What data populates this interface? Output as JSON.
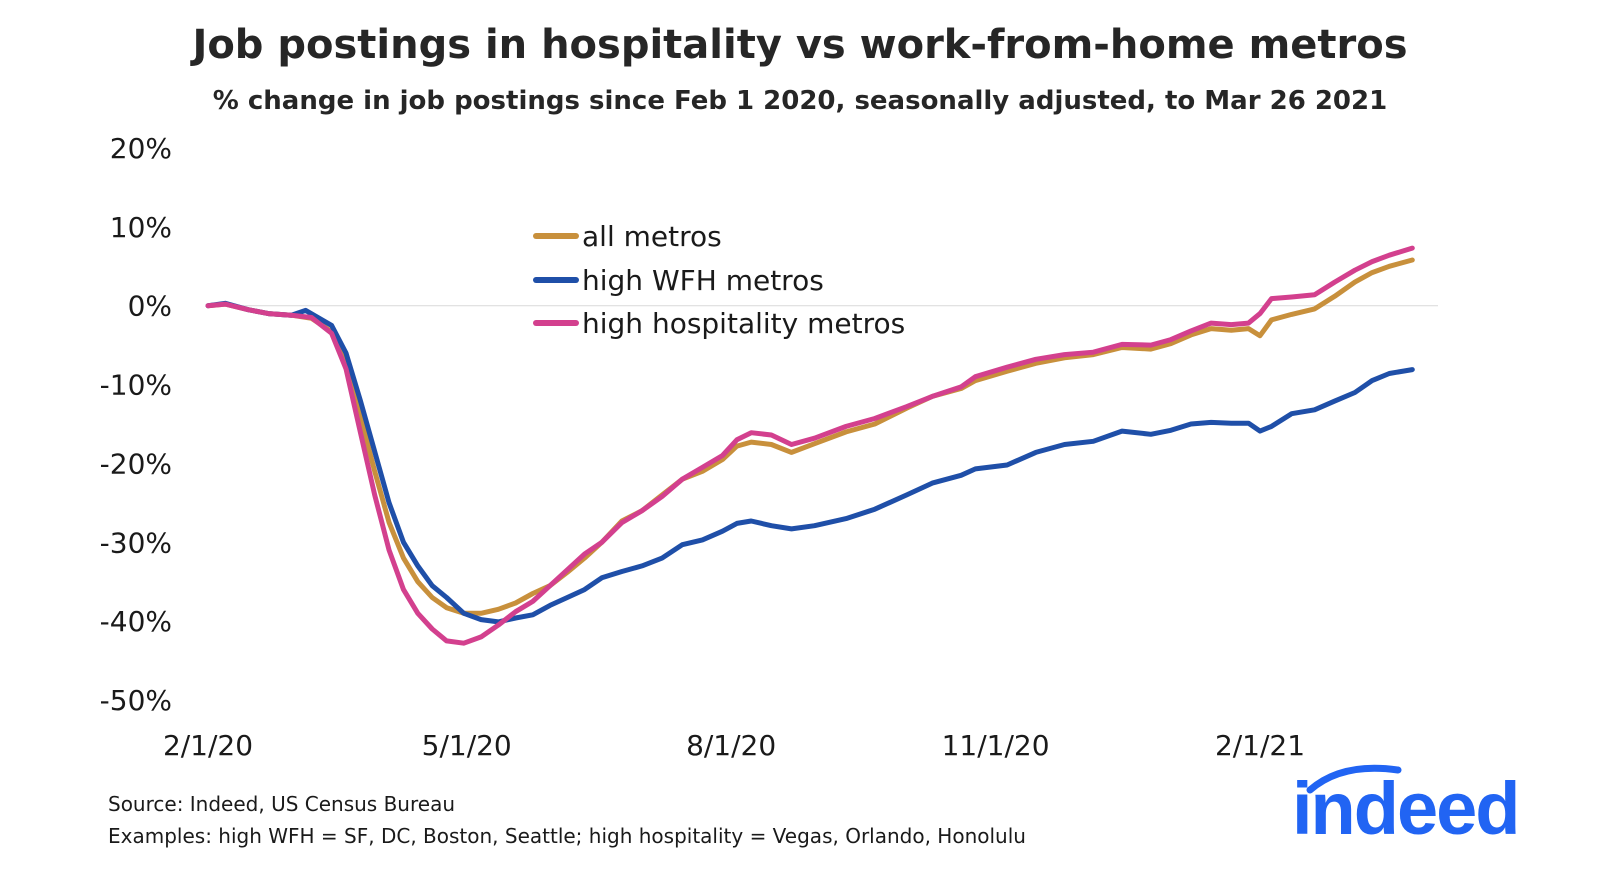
{
  "header": {
    "title": "Job postings in hospitality vs work-from-home metros",
    "subtitle": "% change in job postings since Feb 1 2020, seasonally adjusted, to Mar 26 2021"
  },
  "footer": {
    "source": "Source: Indeed, US Census Bureau",
    "examples": "Examples: high WFH = SF, DC, Boston, Seattle; high hospitality = Vegas, Orlando, Honolulu"
  },
  "logo": {
    "text": "indeed",
    "color": "#2164f3"
  },
  "chart_data": {
    "type": "line",
    "title": "Job postings in hospitality vs work-from-home metros",
    "subtitle": "% change in job postings since Feb 1 2020, seasonally adjusted, to Mar 26 2021",
    "xlabel": "",
    "ylabel": "",
    "x_unit": "date",
    "x_start": "2020-02-01",
    "x_end": "2021-03-26",
    "x_ticks": [
      {
        "label": "2/1/20",
        "date": "2020-02-01"
      },
      {
        "label": "5/1/20",
        "date": "2020-05-01"
      },
      {
        "label": "8/1/20",
        "date": "2020-08-01"
      },
      {
        "label": "11/1/20",
        "date": "2020-11-01"
      },
      {
        "label": "2/1/21",
        "date": "2021-02-01"
      }
    ],
    "y_ticks": [
      {
        "label": "20%",
        "value": 20
      },
      {
        "label": "10%",
        "value": 10
      },
      {
        "label": "0%",
        "value": 0
      },
      {
        "label": "-10%",
        "value": -10
      },
      {
        "label": "-20%",
        "value": -20
      },
      {
        "label": "-30%",
        "value": -30
      },
      {
        "label": "-40%",
        "value": -40
      },
      {
        "label": "-50%",
        "value": -50
      }
    ],
    "ylim": [
      -50,
      20
    ],
    "grid": "zero-line only",
    "legend_position": "center-top",
    "series": [
      {
        "name": "all metros",
        "color": "#c8903c",
        "points": [
          [
            "2020-02-01",
            0
          ],
          [
            "2020-02-07",
            0.2
          ],
          [
            "2020-02-15",
            -0.5
          ],
          [
            "2020-02-22",
            -1
          ],
          [
            "2020-03-01",
            -1.2
          ],
          [
            "2020-03-08",
            -1.6
          ],
          [
            "2020-03-15",
            -3.3
          ],
          [
            "2020-03-20",
            -7
          ],
          [
            "2020-03-25",
            -14
          ],
          [
            "2020-03-30",
            -21
          ],
          [
            "2020-04-04",
            -27.5
          ],
          [
            "2020-04-09",
            -32
          ],
          [
            "2020-04-14",
            -35
          ],
          [
            "2020-04-19",
            -37
          ],
          [
            "2020-04-24",
            -38.3
          ],
          [
            "2020-04-30",
            -39
          ],
          [
            "2020-05-06",
            -39
          ],
          [
            "2020-05-12",
            -38.5
          ],
          [
            "2020-05-18",
            -37.7
          ],
          [
            "2020-05-24",
            -36.5
          ],
          [
            "2020-05-30",
            -35.5
          ],
          [
            "2020-06-05",
            -33.8
          ],
          [
            "2020-06-11",
            -32
          ],
          [
            "2020-06-17",
            -30
          ],
          [
            "2020-06-24",
            -27.3
          ],
          [
            "2020-07-01",
            -26
          ],
          [
            "2020-07-08",
            -24
          ],
          [
            "2020-07-15",
            -22
          ],
          [
            "2020-07-22",
            -21
          ],
          [
            "2020-07-29",
            -19.5
          ],
          [
            "2020-08-03",
            -17.8
          ],
          [
            "2020-08-08",
            -17.3
          ],
          [
            "2020-08-15",
            -17.6
          ],
          [
            "2020-08-22",
            -18.6
          ],
          [
            "2020-08-30",
            -17.5
          ],
          [
            "2020-09-10",
            -16
          ],
          [
            "2020-09-20",
            -15
          ],
          [
            "2020-10-01",
            -13
          ],
          [
            "2020-10-10",
            -11.5
          ],
          [
            "2020-10-20",
            -10.5
          ],
          [
            "2020-10-25",
            -9.5
          ],
          [
            "2020-11-05",
            -8.3
          ],
          [
            "2020-11-15",
            -7.3
          ],
          [
            "2020-11-25",
            -6.6
          ],
          [
            "2020-12-05",
            -6.2
          ],
          [
            "2020-12-15",
            -5.3
          ],
          [
            "2020-12-25",
            -5.5
          ],
          [
            "2021-01-01",
            -4.8
          ],
          [
            "2021-01-08",
            -3.7
          ],
          [
            "2021-01-15",
            -2.9
          ],
          [
            "2021-01-22",
            -3.1
          ],
          [
            "2021-01-28",
            -2.9
          ],
          [
            "2021-02-01",
            -3.8
          ],
          [
            "2021-02-05",
            -1.8
          ],
          [
            "2021-02-12",
            -1.1
          ],
          [
            "2021-02-20",
            -0.4
          ],
          [
            "2021-02-27",
            1.2
          ],
          [
            "2021-03-06",
            3
          ],
          [
            "2021-03-12",
            4.2
          ],
          [
            "2021-03-18",
            5
          ],
          [
            "2021-03-26",
            5.8
          ]
        ]
      },
      {
        "name": "high WFH metros",
        "color": "#1f4fa8",
        "points": [
          [
            "2020-02-01",
            0
          ],
          [
            "2020-02-07",
            0.3
          ],
          [
            "2020-02-15",
            -0.5
          ],
          [
            "2020-02-22",
            -1
          ],
          [
            "2020-03-01",
            -1.2
          ],
          [
            "2020-03-06",
            -0.6
          ],
          [
            "2020-03-15",
            -2.5
          ],
          [
            "2020-03-20",
            -6
          ],
          [
            "2020-03-25",
            -12
          ],
          [
            "2020-03-30",
            -18.5
          ],
          [
            "2020-04-04",
            -25
          ],
          [
            "2020-04-09",
            -30
          ],
          [
            "2020-04-14",
            -33
          ],
          [
            "2020-04-19",
            -35.5
          ],
          [
            "2020-04-24",
            -37
          ],
          [
            "2020-04-30",
            -39
          ],
          [
            "2020-05-06",
            -39.8
          ],
          [
            "2020-05-12",
            -40.1
          ],
          [
            "2020-05-18",
            -39.6
          ],
          [
            "2020-05-24",
            -39.2
          ],
          [
            "2020-05-30",
            -38
          ],
          [
            "2020-06-05",
            -37
          ],
          [
            "2020-06-11",
            -36
          ],
          [
            "2020-06-17",
            -34.5
          ],
          [
            "2020-06-24",
            -33.7
          ],
          [
            "2020-07-01",
            -33
          ],
          [
            "2020-07-08",
            -32
          ],
          [
            "2020-07-15",
            -30.3
          ],
          [
            "2020-07-22",
            -29.7
          ],
          [
            "2020-07-29",
            -28.6
          ],
          [
            "2020-08-03",
            -27.6
          ],
          [
            "2020-08-08",
            -27.3
          ],
          [
            "2020-08-15",
            -27.9
          ],
          [
            "2020-08-22",
            -28.3
          ],
          [
            "2020-08-30",
            -27.9
          ],
          [
            "2020-09-10",
            -27
          ],
          [
            "2020-09-20",
            -25.8
          ],
          [
            "2020-10-01",
            -24
          ],
          [
            "2020-10-10",
            -22.5
          ],
          [
            "2020-10-20",
            -21.5
          ],
          [
            "2020-10-25",
            -20.7
          ],
          [
            "2020-11-05",
            -20.2
          ],
          [
            "2020-11-15",
            -18.6
          ],
          [
            "2020-11-25",
            -17.6
          ],
          [
            "2020-12-05",
            -17.2
          ],
          [
            "2020-12-15",
            -15.9
          ],
          [
            "2020-12-25",
            -16.3
          ],
          [
            "2021-01-01",
            -15.8
          ],
          [
            "2021-01-08",
            -15
          ],
          [
            "2021-01-15",
            -14.8
          ],
          [
            "2021-01-22",
            -14.9
          ],
          [
            "2021-01-28",
            -14.9
          ],
          [
            "2021-02-01",
            -15.9
          ],
          [
            "2021-02-05",
            -15.3
          ],
          [
            "2021-02-12",
            -13.7
          ],
          [
            "2021-02-20",
            -13.2
          ],
          [
            "2021-02-27",
            -12.1
          ],
          [
            "2021-03-06",
            -11
          ],
          [
            "2021-03-12",
            -9.5
          ],
          [
            "2021-03-18",
            -8.6
          ],
          [
            "2021-03-26",
            -8.1
          ]
        ]
      },
      {
        "name": "high hospitality metros",
        "color": "#d3408e",
        "points": [
          [
            "2020-02-01",
            0
          ],
          [
            "2020-02-07",
            0.2
          ],
          [
            "2020-02-15",
            -0.5
          ],
          [
            "2020-02-22",
            -1
          ],
          [
            "2020-03-01",
            -1.2
          ],
          [
            "2020-03-08",
            -1.5
          ],
          [
            "2020-03-15",
            -3.5
          ],
          [
            "2020-03-20",
            -8
          ],
          [
            "2020-03-25",
            -16
          ],
          [
            "2020-03-30",
            -24
          ],
          [
            "2020-04-04",
            -31
          ],
          [
            "2020-04-09",
            -36
          ],
          [
            "2020-04-14",
            -39
          ],
          [
            "2020-04-19",
            -41
          ],
          [
            "2020-04-24",
            -42.5
          ],
          [
            "2020-04-30",
            -42.8
          ],
          [
            "2020-05-06",
            -42
          ],
          [
            "2020-05-12",
            -40.5
          ],
          [
            "2020-05-18",
            -38.8
          ],
          [
            "2020-05-24",
            -37.5
          ],
          [
            "2020-05-30",
            -35.5
          ],
          [
            "2020-06-05",
            -33.5
          ],
          [
            "2020-06-11",
            -31.5
          ],
          [
            "2020-06-17",
            -30
          ],
          [
            "2020-06-24",
            -27.5
          ],
          [
            "2020-07-01",
            -26
          ],
          [
            "2020-07-08",
            -24.2
          ],
          [
            "2020-07-15",
            -22
          ],
          [
            "2020-07-22",
            -20.5
          ],
          [
            "2020-07-29",
            -19
          ],
          [
            "2020-08-03",
            -17
          ],
          [
            "2020-08-08",
            -16.1
          ],
          [
            "2020-08-15",
            -16.4
          ],
          [
            "2020-08-22",
            -17.6
          ],
          [
            "2020-08-30",
            -16.8
          ],
          [
            "2020-09-10",
            -15.3
          ],
          [
            "2020-09-20",
            -14.3
          ],
          [
            "2020-10-01",
            -12.8
          ],
          [
            "2020-10-10",
            -11.5
          ],
          [
            "2020-10-20",
            -10.3
          ],
          [
            "2020-10-25",
            -9
          ],
          [
            "2020-11-05",
            -7.8
          ],
          [
            "2020-11-15",
            -6.8
          ],
          [
            "2020-11-25",
            -6.2
          ],
          [
            "2020-12-05",
            -5.9
          ],
          [
            "2020-12-15",
            -4.9
          ],
          [
            "2020-12-25",
            -5.0
          ],
          [
            "2021-01-01",
            -4.3
          ],
          [
            "2021-01-08",
            -3.2
          ],
          [
            "2021-01-15",
            -2.2
          ],
          [
            "2021-01-22",
            -2.4
          ],
          [
            "2021-01-28",
            -2.2
          ],
          [
            "2021-02-01",
            -1
          ],
          [
            "2021-02-05",
            0.9
          ],
          [
            "2021-02-12",
            1.1
          ],
          [
            "2021-02-20",
            1.4
          ],
          [
            "2021-02-27",
            3
          ],
          [
            "2021-03-06",
            4.5
          ],
          [
            "2021-03-12",
            5.6
          ],
          [
            "2021-03-18",
            6.4
          ],
          [
            "2021-03-26",
            7.3
          ]
        ]
      }
    ]
  }
}
